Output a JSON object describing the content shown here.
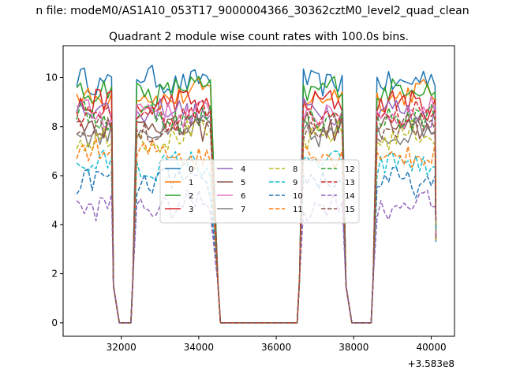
{
  "figure": {
    "suptitle": "n file: modeM0/AS1A10_053T17_9000004366_30362cztM0_level2_quad_clean",
    "title": "Quadrant 2 module wise count rates with 100.0s bins."
  },
  "chart_data": {
    "type": "line",
    "title": "Quadrant 2 module wise count rates with 100.0s bins.",
    "xlabel": "",
    "ylabel": "",
    "x_offset_label": "+3.583e8",
    "x_offset": 358300000,
    "xlim": [
      30500,
      40600
    ],
    "ylim": [
      -0.55,
      11.3
    ],
    "xticks": [
      32000,
      34000,
      36000,
      38000,
      40000
    ],
    "yticks": [
      0,
      2,
      4,
      6,
      8,
      10
    ],
    "grid": false,
    "legend": {
      "position": "center",
      "columns": 4
    },
    "segments": [
      {
        "kind": "active",
        "x0": 30850,
        "x1": 31800
      },
      {
        "kind": "drop",
        "points": [
          [
            31800,
            1.5
          ],
          [
            31950,
            0
          ],
          [
            32250,
            0
          ],
          [
            32300,
            1.8
          ]
        ]
      },
      {
        "kind": "active",
        "x0": 32400,
        "x1": 34300
      },
      {
        "kind": "drop",
        "points": [
          [
            34500,
            1.5
          ],
          [
            34560,
            0
          ],
          [
            36540,
            0
          ],
          [
            36600,
            1.8
          ]
        ]
      },
      {
        "kind": "active",
        "x0": 36700,
        "x1": 37700
      },
      {
        "kind": "drop",
        "points": [
          [
            37800,
            1.5
          ],
          [
            37950,
            0
          ],
          [
            38450,
            0
          ],
          [
            38500,
            1.8
          ]
        ]
      },
      {
        "kind": "active",
        "x0": 38600,
        "x1": 40100
      }
    ],
    "series": [
      {
        "name": "0",
        "color": "#1f77b4",
        "dash": "solid",
        "level": 9.9
      },
      {
        "name": "1",
        "color": "#ff7f0e",
        "dash": "solid",
        "level": 9.3
      },
      {
        "name": "2",
        "color": "#2ca02c",
        "dash": "solid",
        "level": 9.5
      },
      {
        "name": "3",
        "color": "#d62728",
        "dash": "solid",
        "level": 8.9
      },
      {
        "name": "4",
        "color": "#9467bd",
        "dash": "solid",
        "level": 8.6
      },
      {
        "name": "5",
        "color": "#8c564b",
        "dash": "solid",
        "level": 8.0
      },
      {
        "name": "6",
        "color": "#e377c2",
        "dash": "solid",
        "level": 8.6
      },
      {
        "name": "7",
        "color": "#7f7f7f",
        "dash": "solid",
        "level": 7.8
      },
      {
        "name": "8",
        "color": "#bcbd22",
        "dash": "dashed",
        "level": 7.6
      },
      {
        "name": "9",
        "color": "#17becf",
        "dash": "dashed",
        "level": 6.4
      },
      {
        "name": "10",
        "color": "#1f77b4",
        "dash": "dashed",
        "level": 5.7
      },
      {
        "name": "11",
        "color": "#ff7f0e",
        "dash": "dashed",
        "level": 6.9
      },
      {
        "name": "12",
        "color": "#2ca02c",
        "dash": "dashed",
        "level": 8.4
      },
      {
        "name": "13",
        "color": "#d62728",
        "dash": "dashed",
        "level": 8.5
      },
      {
        "name": "14",
        "color": "#9467bd",
        "dash": "dashed",
        "level": 4.8
      },
      {
        "name": "15",
        "color": "#8c564b",
        "dash": "dashed",
        "level": 7.9
      }
    ]
  }
}
